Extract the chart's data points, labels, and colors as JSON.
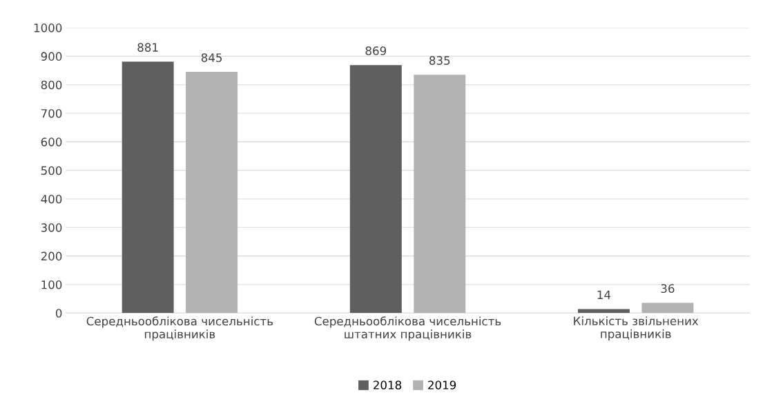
{
  "chart_data": {
    "type": "bar",
    "categories": [
      "Середньооблікова чисельність\nпрацівників",
      "Середньооблікова чисельність\nштатних працівників",
      "Кількість звільнених\nпрацівників"
    ],
    "series": [
      {
        "name": "2018",
        "color": "#5f5f5f",
        "values": [
          881,
          869,
          14
        ]
      },
      {
        "name": "2019",
        "color": "#b2b2b2",
        "values": [
          845,
          835,
          36
        ]
      }
    ],
    "ylim": [
      0,
      1000
    ],
    "yticks": [
      0,
      100,
      200,
      300,
      400,
      500,
      600,
      700,
      800,
      900,
      1000
    ],
    "grid": "y",
    "legend": "bottom",
    "data_labels": true
  }
}
